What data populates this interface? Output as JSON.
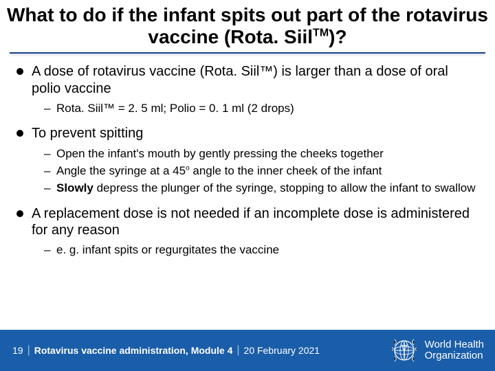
{
  "title_html": "What to do if the infant spits out part of the rotavirus vaccine (Rota. Siil<sup>TM</sup>)?",
  "bullets": [
    {
      "text": "A dose of rotavirus vaccine (Rota. Siil™) is larger than a dose of oral polio vaccine",
      "sub": [
        {
          "html": "Rota. Siil™ = 2. 5 ml; Polio = 0. 1 ml (2 drops)"
        }
      ]
    },
    {
      "text": "To prevent spitting",
      "sub": [
        {
          "html": "Open the infant's mouth by gently pressing the cheeks together"
        },
        {
          "html": "Angle the syringe at a 45<span class=\"small-sup\">o</span> angle to the inner cheek of the infant"
        },
        {
          "html": "<span class=\"bold\">Slowly</span> depress the plunger of the syringe, stopping to allow the infant to swallow"
        }
      ]
    },
    {
      "text": "A replacement dose is not needed if an incomplete dose is administered for any reason",
      "sub": [
        {
          "html": "e. g. infant spits or regurgitates the vaccine"
        }
      ]
    }
  ],
  "footer": {
    "page": "19",
    "module": "Rotavirus vaccine administration, Module 4",
    "date": "20 February 2021",
    "org_line1": "World Health",
    "org_line2": "Organization"
  },
  "colors": {
    "footer_bg": "#1a5da8",
    "underline": "#1a3e8c"
  }
}
